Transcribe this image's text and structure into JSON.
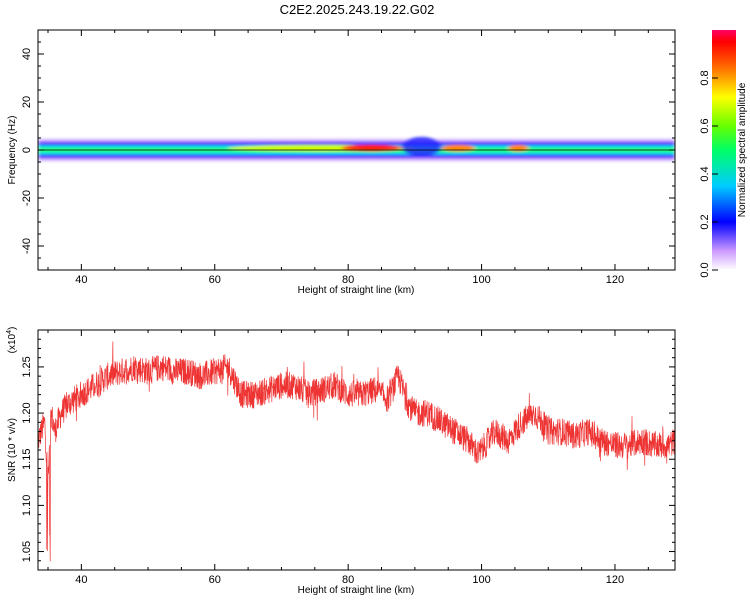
{
  "title": "C2E2.2025.243.19.22.G02",
  "chart_data": [
    {
      "type": "heatmap",
      "name": "spectrogram",
      "xlabel": "Height of straight line (km)",
      "ylabel": "Frequency (Hz)",
      "xlim": [
        33.5,
        129
      ],
      "ylim": [
        -50,
        50
      ],
      "xticks": [
        40,
        60,
        80,
        100,
        120
      ],
      "yticks": [
        -40,
        -20,
        0,
        20,
        40
      ],
      "band_center_hz": 0,
      "band_halfwidth_hz": 5,
      "hotspots": [
        {
          "x_range": [
            62,
            90
          ],
          "amplitude": 0.75
        },
        {
          "x_range": [
            79,
            88
          ],
          "amplitude": 0.95
        },
        {
          "x_range": [
            94,
            99
          ],
          "amplitude": 0.9
        },
        {
          "x_range": [
            104,
            107
          ],
          "amplitude": 0.9
        },
        {
          "x_range": [
            88,
            94
          ],
          "amplitude": 0.15,
          "note": "band widening"
        }
      ]
    },
    {
      "type": "colorbar",
      "name": "amplitude-scale",
      "label": "Normalized spectral amplitude",
      "range": [
        0,
        1
      ],
      "ticks": [
        "0.0",
        "0.2",
        "0.4",
        "0.6",
        "0.8"
      ],
      "tick_values": [
        0.0,
        0.2,
        0.4,
        0.6,
        0.8
      ]
    },
    {
      "type": "line",
      "name": "snr",
      "xlabel": "Height of straight line (km)",
      "ylabel": "SNR (10 * v/v)",
      "yexp_label": "(x10",
      "yexp_power": "4",
      "yexp_close": ")",
      "xlim": [
        33.5,
        129
      ],
      "ylim": [
        1.03,
        1.29
      ],
      "xticks": [
        40,
        60,
        80,
        100,
        120
      ],
      "yticks": [
        1.05,
        1.1,
        1.15,
        1.2,
        1.25
      ],
      "ytick_labels": [
        "1.05",
        "1.10",
        "1.15",
        "1.20",
        "1.25"
      ],
      "color": "#ee3333",
      "x": [
        33.5,
        34.5,
        35.0,
        35.5,
        36,
        37,
        38,
        40,
        42,
        44,
        46,
        48,
        50,
        52,
        54,
        56,
        58,
        60,
        62,
        63,
        64,
        66,
        68,
        70,
        72,
        74,
        76,
        78,
        80,
        82,
        84,
        86,
        87.5,
        89,
        90,
        92,
        94,
        96,
        98,
        99.5,
        100.5,
        102,
        104,
        106,
        108,
        110,
        112,
        114,
        116,
        118,
        120,
        122,
        124,
        126,
        128,
        129
      ],
      "y": [
        1.17,
        1.19,
        1.13,
        1.2,
        1.18,
        1.2,
        1.21,
        1.22,
        1.23,
        1.24,
        1.245,
        1.25,
        1.245,
        1.25,
        1.245,
        1.245,
        1.24,
        1.245,
        1.25,
        1.235,
        1.22,
        1.22,
        1.225,
        1.23,
        1.23,
        1.22,
        1.225,
        1.23,
        1.22,
        1.22,
        1.225,
        1.215,
        1.24,
        1.21,
        1.2,
        1.2,
        1.19,
        1.18,
        1.17,
        1.155,
        1.165,
        1.18,
        1.17,
        1.19,
        1.2,
        1.18,
        1.18,
        1.175,
        1.18,
        1.17,
        1.165,
        1.165,
        1.17,
        1.165,
        1.165,
        1.17
      ]
    }
  ]
}
